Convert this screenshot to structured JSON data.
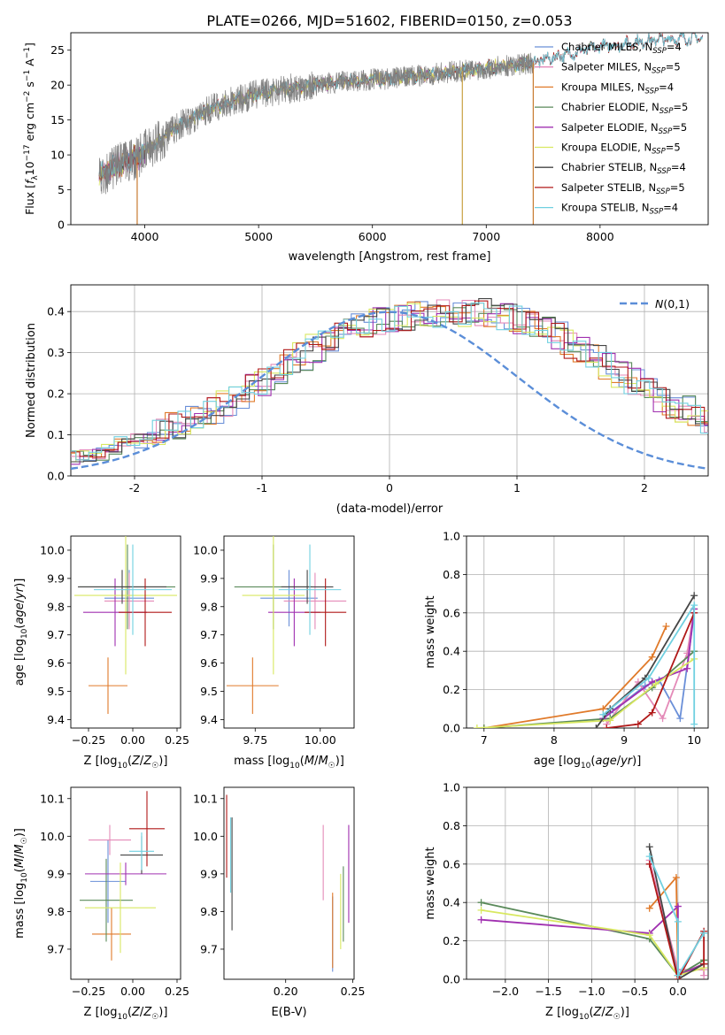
{
  "title": "PLATE=0266, MJD=51602, FIBERID=0150, z=0.053",
  "colors": {
    "Chabrier MILES": "#6a8fd8",
    "Salpeter MILES": "#e48ab8",
    "Kroupa MILES": "#e07a2a",
    "Chabrier ELODIE": "#5a8a5a",
    "Salpeter ELODIE": "#a030b0",
    "Kroupa ELODIE": "#d8e860",
    "Chabrier STELIB": "#454545",
    "Salpeter STELIB": "#b01818",
    "Kroupa STELIB": "#70d0e0",
    "data": "#808080",
    "normal": "#5b8ed8"
  },
  "chart_data": [
    {
      "type": "line",
      "id": "spectrum",
      "xlabel": "wavelength [Angstrom, rest frame]",
      "ylabel": "Flux [f_λ 10^-17 erg cm^-2 s^-1 A^-1]",
      "xlim": [
        3350,
        8950
      ],
      "ylim": [
        0,
        27.5
      ],
      "xticks": [
        4000,
        5000,
        6000,
        7000,
        8000
      ],
      "yticks": [
        0,
        5,
        10,
        15,
        20,
        25
      ],
      "grid": false,
      "legend_position": "right",
      "legend": [
        {
          "label": "Chabrier MILES",
          "nssp": "4"
        },
        {
          "label": "Salpeter MILES",
          "nssp": "5"
        },
        {
          "label": "Kroupa MILES",
          "nssp": "4"
        },
        {
          "label": "Chabrier ELODIE",
          "nssp": "5"
        },
        {
          "label": "Salpeter ELODIE",
          "nssp": "5"
        },
        {
          "label": "Kroupa ELODIE",
          "nssp": "5"
        },
        {
          "label": "Chabrier STELIB",
          "nssp": "4"
        },
        {
          "label": "Salpeter STELIB",
          "nssp": "5"
        },
        {
          "label": "Kroupa STELIB",
          "nssp": "4"
        }
      ],
      "model_continuum": {
        "x": [
          3600,
          3800,
          3950,
          4100,
          4300,
          4600,
          5000,
          5400,
          5800,
          6200,
          6600,
          7000,
          7400,
          7600,
          8000,
          8500,
          8900
        ],
        "y": [
          7.0,
          8.8,
          9.8,
          11.8,
          14.2,
          16.8,
          18.8,
          19.8,
          20.6,
          21.0,
          21.7,
          22.4,
          23.2,
          24.0,
          25.5,
          26.5,
          26.8
        ]
      },
      "model_ranges": {
        "full": [
          3600,
          8900
        ],
        "partial": [
          3600,
          7420
        ]
      },
      "data_range": [
        3600,
        7420
      ],
      "dips": [
        {
          "x": 3933,
          "y": 0
        },
        {
          "x": 6790,
          "y": 0
        },
        {
          "x": 7413,
          "y": 0
        }
      ]
    },
    {
      "type": "histogram",
      "id": "residuals",
      "xlabel": "(data-model)/error",
      "ylabel": "Normed distribution",
      "xlim": [
        -2.5,
        2.5
      ],
      "ylim": [
        0,
        0.465
      ],
      "xticks": [
        -2,
        -1,
        0,
        1,
        2
      ],
      "yticks": [
        0.0,
        0.1,
        0.2,
        0.3,
        0.4
      ],
      "grid": true,
      "legend_position": "top-right",
      "gauss_label": "N(0,1)",
      "bin_width": 0.1,
      "base": [
        0.045,
        0.05,
        0.055,
        0.07,
        0.078,
        0.085,
        0.095,
        0.105,
        0.12,
        0.135,
        0.145,
        0.16,
        0.175,
        0.195,
        0.215,
        0.23,
        0.255,
        0.275,
        0.29,
        0.31,
        0.33,
        0.34,
        0.36,
        0.37,
        0.375,
        0.38,
        0.385,
        0.39,
        0.392,
        0.395,
        0.395,
        0.395,
        0.4,
        0.395,
        0.39,
        0.38,
        0.37,
        0.355,
        0.34,
        0.32,
        0.305,
        0.29,
        0.27,
        0.25,
        0.23,
        0.21,
        0.19,
        0.175,
        0.16,
        0.14,
        0.125,
        0.11,
        0.1,
        0.09,
        0.08,
        0.07,
        0.065,
        0.055,
        0.05,
        0.045,
        0.04,
        0.035,
        0.03,
        0.028,
        0.025,
        0.023,
        0.02,
        0.018,
        0.016,
        0.015,
        0.014
      ]
    },
    {
      "type": "scatter",
      "id": "age-vs-z",
      "xlabel": "Z [log10(Z/Z☉)]",
      "ylabel": "age  [log10(age/yr)]",
      "xlim": [
        -0.35,
        0.27
      ],
      "ylim": [
        9.37,
        10.05
      ],
      "xticks": [
        -0.25,
        0.0,
        0.25
      ],
      "xticklabels": [
        "−0.25",
        "0.00",
        "0.25"
      ],
      "yticks": [
        9.4,
        9.5,
        9.6,
        9.7,
        9.8,
        9.9,
        10.0
      ],
      "grid": false,
      "points": [
        {
          "series": "Chabrier MILES",
          "x": -0.02,
          "xerr": 0.14,
          "y": 9.83,
          "yerr": 0.1
        },
        {
          "series": "Salpeter MILES",
          "x": -0.02,
          "xerr": 0.14,
          "y": 9.82,
          "yerr": 0.1
        },
        {
          "series": "Kroupa MILES",
          "x": -0.14,
          "xerr": 0.11,
          "y": 9.52,
          "yerr": 0.1
        },
        {
          "series": "Chabrier ELODIE",
          "x": -0.03,
          "xerr": 0.27,
          "y": 9.87,
          "yerr": 0.15
        },
        {
          "series": "Salpeter ELODIE",
          "x": -0.1,
          "xerr": 0.18,
          "y": 9.78,
          "yerr": 0.12
        },
        {
          "series": "Kroupa ELODIE",
          "x": -0.04,
          "xerr": 0.29,
          "y": 9.84,
          "yerr": 0.28
        },
        {
          "series": "Chabrier STELIB",
          "x": -0.06,
          "xerr": 0.25,
          "y": 9.87,
          "yerr": 0.06
        },
        {
          "series": "Salpeter STELIB",
          "x": 0.07,
          "xerr": 0.15,
          "y": 9.78,
          "yerr": 0.12
        },
        {
          "series": "Kroupa STELIB",
          "x": 0.0,
          "xerr": 0.22,
          "y": 9.86,
          "yerr": 0.16
        }
      ]
    },
    {
      "type": "scatter",
      "id": "age-vs-mass",
      "xlabel": "mass [log10(M/M☉)]",
      "ylabel": "",
      "xlim": [
        9.63,
        10.13
      ],
      "ylim": [
        9.37,
        10.05
      ],
      "xticks": [
        9.75,
        10.0
      ],
      "xticklabels": [
        "9.75",
        "10.00"
      ],
      "yticks": [
        9.4,
        9.5,
        9.6,
        9.7,
        9.8,
        9.9,
        10.0
      ],
      "grid": false,
      "points": [
        {
          "series": "Chabrier MILES",
          "x": 9.88,
          "xerr": 0.11,
          "y": 9.83,
          "yerr": 0.1
        },
        {
          "series": "Salpeter MILES",
          "x": 9.98,
          "xerr": 0.12,
          "y": 9.82,
          "yerr": 0.1
        },
        {
          "series": "Kroupa MILES",
          "x": 9.74,
          "xerr": 0.1,
          "y": 9.52,
          "yerr": 0.1
        },
        {
          "series": "Chabrier ELODIE",
          "x": 9.82,
          "xerr": 0.15,
          "y": 9.87,
          "yerr": 0.15
        },
        {
          "series": "Salpeter ELODIE",
          "x": 9.9,
          "xerr": 0.1,
          "y": 9.78,
          "yerr": 0.12
        },
        {
          "series": "Kroupa ELODIE",
          "x": 9.82,
          "xerr": 0.12,
          "y": 9.84,
          "yerr": 0.28
        },
        {
          "series": "Chabrier STELIB",
          "x": 9.95,
          "xerr": 0.1,
          "y": 9.87,
          "yerr": 0.06
        },
        {
          "series": "Salpeter STELIB",
          "x": 10.02,
          "xerr": 0.08,
          "y": 9.78,
          "yerr": 0.12
        },
        {
          "series": "Kroupa STELIB",
          "x": 9.96,
          "xerr": 0.12,
          "y": 9.86,
          "yerr": 0.16
        }
      ]
    },
    {
      "type": "line",
      "id": "weight-vs-age",
      "xlabel": "age  [log10(age/yr)]",
      "ylabel": "mass weight",
      "xlim": [
        6.75,
        10.2
      ],
      "ylim": [
        0,
        1
      ],
      "xticks": [
        7,
        8,
        9,
        10
      ],
      "yticks": [
        0.0,
        0.2,
        0.4,
        0.6,
        0.8,
        1.0
      ],
      "grid": true,
      "series": [
        {
          "name": "Chabrier MILES",
          "points": [
            [
              8.8,
              0.08
            ],
            [
              9.3,
              0.22
            ],
            [
              9.5,
              0.25
            ],
            [
              9.8,
              0.05
            ],
            [
              10.0,
              0.6
            ]
          ]
        },
        {
          "name": "Salpeter MILES",
          "points": [
            [
              8.75,
              0.02
            ],
            [
              9.2,
              0.24
            ],
            [
              9.55,
              0.05
            ],
            [
              9.9,
              0.39
            ],
            [
              10.0,
              0.62
            ]
          ]
        },
        {
          "name": "Kroupa MILES",
          "points": [
            [
              7.0,
              0.0
            ],
            [
              8.7,
              0.1
            ],
            [
              9.4,
              0.37
            ],
            [
              9.6,
              0.53
            ]
          ]
        },
        {
          "name": "Chabrier ELODIE",
          "points": [
            [
              7.0,
              0.0
            ],
            [
              8.8,
              0.05
            ],
            [
              9.4,
              0.21
            ],
            [
              10.0,
              0.4
            ]
          ]
        },
        {
          "name": "Salpeter ELODIE",
          "points": [
            [
              8.7,
              0.05
            ],
            [
              9.4,
              0.24
            ],
            [
              9.9,
              0.31
            ],
            [
              10.0,
              0.62
            ]
          ]
        },
        {
          "name": "Kroupa ELODIE",
          "points": [
            [
              6.9,
              0.0
            ],
            [
              8.8,
              0.04
            ],
            [
              9.45,
              0.23
            ],
            [
              10.0,
              0.36
            ]
          ]
        },
        {
          "name": "Chabrier STELIB",
          "points": [
            [
              8.6,
              0.0
            ],
            [
              8.8,
              0.1
            ],
            [
              9.3,
              0.26
            ],
            [
              10.0,
              0.69
            ]
          ]
        },
        {
          "name": "Salpeter STELIB",
          "points": [
            [
              8.75,
              0.0
            ],
            [
              9.2,
              0.02
            ],
            [
              9.4,
              0.08
            ],
            [
              10.0,
              0.6
            ]
          ]
        },
        {
          "name": "Kroupa STELIB",
          "points": [
            [
              8.7,
              0.07
            ],
            [
              9.35,
              0.26
            ],
            [
              10.0,
              0.64
            ],
            [
              10.0,
              0.02
            ]
          ]
        }
      ]
    },
    {
      "type": "scatter",
      "id": "mass-vs-z",
      "xlabel": "Z [log10(Z/Z☉)]",
      "ylabel": "mass [log10(M/M☉)]",
      "xlim": [
        -0.35,
        0.27
      ],
      "ylim": [
        9.62,
        10.13
      ],
      "xticks": [
        -0.25,
        0.0,
        0.25
      ],
      "xticklabels": [
        "−0.25",
        "0.00",
        "0.25"
      ],
      "yticks": [
        9.7,
        9.8,
        9.9,
        10.0,
        10.1
      ],
      "grid": false,
      "points": [
        {
          "series": "Chabrier MILES",
          "x": -0.14,
          "xerr": 0.1,
          "y": 9.88,
          "yerr": 0.11
        },
        {
          "series": "Salpeter MILES",
          "x": -0.13,
          "xerr": 0.12,
          "y": 9.99,
          "yerr": 0.04
        },
        {
          "series": "Kroupa MILES",
          "x": -0.12,
          "xerr": 0.11,
          "y": 9.74,
          "yerr": 0.07
        },
        {
          "series": "Chabrier ELODIE",
          "x": -0.15,
          "xerr": 0.15,
          "y": 9.83,
          "yerr": 0.11
        },
        {
          "series": "Salpeter ELODIE",
          "x": -0.04,
          "xerr": 0.23,
          "y": 9.9,
          "yerr": 0.03
        },
        {
          "series": "Kroupa ELODIE",
          "x": -0.07,
          "xerr": 0.2,
          "y": 9.81,
          "yerr": 0.12
        },
        {
          "series": "Chabrier STELIB",
          "x": 0.05,
          "xerr": 0.12,
          "y": 9.95,
          "yerr": 0.05
        },
        {
          "series": "Salpeter STELIB",
          "x": 0.08,
          "xerr": 0.1,
          "y": 10.02,
          "yerr": 0.1
        },
        {
          "series": "Kroupa STELIB",
          "x": 0.05,
          "xerr": 0.07,
          "y": 9.96,
          "yerr": 0.05
        }
      ]
    },
    {
      "type": "scatter",
      "id": "mass-vs-ebv",
      "xlabel": "E(B-V)",
      "ylabel": "",
      "xlim": [
        0.154,
        0.251
      ],
      "ylim": [
        9.62,
        10.13
      ],
      "xticks": [
        0.2,
        0.25
      ],
      "xticklabels": [
        "0.20",
        "0.25"
      ],
      "yticks": [
        9.7,
        9.8,
        9.9,
        10.0,
        10.1
      ],
      "grid": false,
      "points": [
        {
          "series": "Chabrier MILES",
          "x": 0.235,
          "xerr": 0,
          "y": 9.74,
          "yerr": 0.1
        },
        {
          "series": "Salpeter MILES",
          "x": 0.228,
          "xerr": 0,
          "y": 9.93,
          "yerr": 0.1
        },
        {
          "series": "Kroupa MILES",
          "x": 0.235,
          "xerr": 0,
          "y": 9.75,
          "yerr": 0.1
        },
        {
          "series": "Chabrier ELODIE",
          "x": 0.243,
          "xerr": 0,
          "y": 9.82,
          "yerr": 0.1
        },
        {
          "series": "Salpeter ELODIE",
          "x": 0.247,
          "xerr": 0,
          "y": 9.9,
          "yerr": 0.13
        },
        {
          "series": "Kroupa ELODIE",
          "x": 0.241,
          "xerr": 0,
          "y": 9.8,
          "yerr": 0.1
        },
        {
          "series": "Chabrier STELIB",
          "x": 0.16,
          "xerr": 0,
          "y": 9.9,
          "yerr": 0.15
        },
        {
          "series": "Salpeter STELIB",
          "x": 0.156,
          "xerr": 0,
          "y": 10.0,
          "yerr": 0.11
        },
        {
          "series": "Kroupa STELIB",
          "x": 0.159,
          "xerr": 0,
          "y": 9.95,
          "yerr": 0.1
        }
      ]
    },
    {
      "type": "line",
      "id": "weight-vs-z",
      "xlabel": "Z [log10(Z/Z☉)]",
      "ylabel": "mass weight",
      "xlim": [
        -2.45,
        0.35
      ],
      "ylim": [
        0,
        1
      ],
      "xticks": [
        -2.0,
        -1.5,
        -1.0,
        -0.5,
        0.0
      ],
      "xticklabels": [
        "−2.0",
        "−1.5",
        "−1.0",
        "−0.5",
        "0.0"
      ],
      "yticks": [
        0.0,
        0.2,
        0.4,
        0.6,
        0.8,
        1.0
      ],
      "grid": true,
      "series": [
        {
          "name": "Chabrier MILES",
          "points": [
            [
              -0.33,
              0.6
            ],
            [
              0.0,
              0.02
            ],
            [
              0.3,
              0.08
            ]
          ]
        },
        {
          "name": "Salpeter MILES",
          "points": [
            [
              -0.33,
              0.62
            ],
            [
              0.0,
              0.05
            ],
            [
              0.3,
              0.05
            ],
            [
              0.3,
              0.02
            ]
          ]
        },
        {
          "name": "Kroupa MILES",
          "points": [
            [
              -0.33,
              0.37
            ],
            [
              -0.02,
              0.53
            ],
            [
              0.0,
              0.02
            ],
            [
              0.3,
              0.08
            ]
          ]
        },
        {
          "name": "Chabrier ELODIE",
          "points": [
            [
              -2.28,
              0.4
            ],
            [
              -0.33,
              0.21
            ],
            [
              0.0,
              0.02
            ],
            [
              0.3,
              0.1
            ]
          ]
        },
        {
          "name": "Salpeter ELODIE",
          "points": [
            [
              -2.28,
              0.31
            ],
            [
              -0.33,
              0.24
            ],
            [
              0.0,
              0.38
            ],
            [
              0.0,
              0.02
            ],
            [
              0.3,
              0.08
            ]
          ]
        },
        {
          "name": "Kroupa ELODIE",
          "points": [
            [
              -2.28,
              0.36
            ],
            [
              -0.33,
              0.23
            ],
            [
              0.0,
              0.02
            ],
            [
              0.3,
              0.06
            ]
          ]
        },
        {
          "name": "Chabrier STELIB",
          "points": [
            [
              -0.33,
              0.69
            ],
            [
              0.0,
              0.0
            ],
            [
              0.3,
              0.08
            ]
          ]
        },
        {
          "name": "Salpeter STELIB",
          "points": [
            [
              -0.33,
              0.6
            ],
            [
              0.0,
              0.0
            ],
            [
              0.3,
              0.25
            ],
            [
              0.3,
              0.08
            ]
          ]
        },
        {
          "name": "Kroupa STELIB",
          "points": [
            [
              -0.33,
              0.64
            ],
            [
              0.0,
              0.3
            ],
            [
              0.0,
              0.02
            ],
            [
              0.3,
              0.24
            ]
          ]
        }
      ]
    }
  ]
}
